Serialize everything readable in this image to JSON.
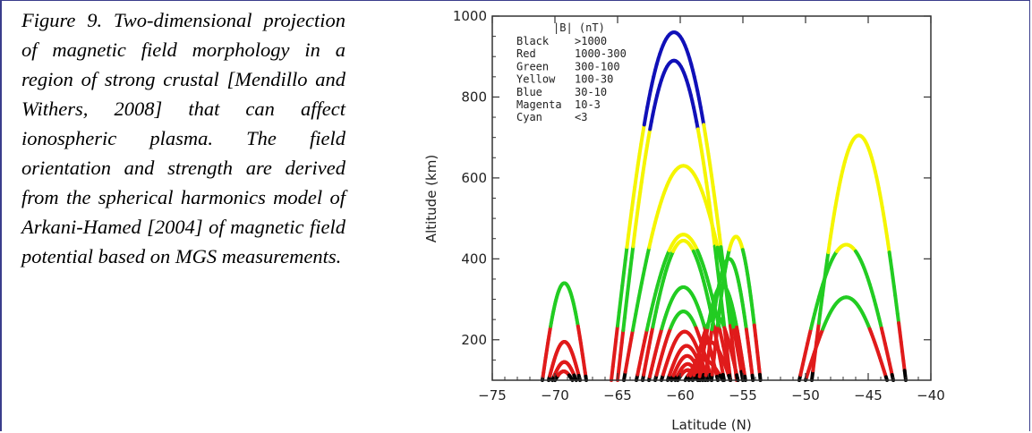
{
  "caption": "Figure 9. Two-dimensional projection of magnetic field morphology in a region of strong crustal [Mendillo and Withers, 2008] that can affect ionospheric plasma. The field orientation and strength are derived from the spherical harmonics model of Arkani-Hamed [2004] of magnetic field potential based on MGS measurements.",
  "chart_data": {
    "type": "line",
    "xlabel": "Latitude (N)",
    "ylabel": "Altitude (km)",
    "xlim": [
      -75,
      -40
    ],
    "ylim": [
      100,
      1000
    ],
    "xticks": [
      -75,
      -70,
      -65,
      -60,
      -55,
      -50,
      -45,
      -40
    ],
    "yticks": [
      200,
      400,
      600,
      800,
      1000
    ],
    "grid": false,
    "legend": {
      "position": "top-left",
      "title": "|B| (nT)",
      "entries": [
        {
          "name": "Black",
          "range": ">1000",
          "color": "#000000",
          "min": 1000,
          "max": 1000000
        },
        {
          "name": "Red",
          "range": "1000-300",
          "color": "#e01b1b",
          "min": 300,
          "max": 1000
        },
        {
          "name": "Green",
          "range": "300-100",
          "color": "#22cc22",
          "min": 100,
          "max": 300
        },
        {
          "name": "Yellow",
          "range": "100-30",
          "color": "#f5f500",
          "min": 30,
          "max": 100
        },
        {
          "name": "Blue",
          "range": "30-10",
          "color": "#1010b8",
          "min": 10,
          "max": 30
        },
        {
          "name": "Magenta",
          "range": "10-3",
          "color": "#e020e0",
          "min": 3,
          "max": 10
        },
        {
          "name": "Cyan",
          "range": "<3",
          "color": "#20e0e0",
          "min": 0,
          "max": 3
        }
      ]
    },
    "field_lines": [
      {
        "x1": -71,
        "x2": -67.5,
        "peak": 340
      },
      {
        "x1": -70.5,
        "x2": -68,
        "peak": 195
      },
      {
        "x1": -70.2,
        "x2": -68.3,
        "peak": 145
      },
      {
        "x1": -70,
        "x2": -68.6,
        "peak": 122
      },
      {
        "x1": -65.5,
        "x2": -55.5,
        "peak": 960
      },
      {
        "x1": -65,
        "x2": -56,
        "peak": 890
      },
      {
        "x1": -64.5,
        "x2": -55,
        "peak": 630
      },
      {
        "x1": -63.5,
        "x2": -56,
        "peak": 460
      },
      {
        "x1": -63,
        "x2": -56.5,
        "peak": 445
      },
      {
        "x1": -62.5,
        "x2": -57,
        "peak": 330
      },
      {
        "x1": -62,
        "x2": -57.5,
        "peak": 270
      },
      {
        "x1": -61.5,
        "x2": -57.8,
        "peak": 220
      },
      {
        "x1": -61,
        "x2": -58,
        "peak": 185
      },
      {
        "x1": -60.7,
        "x2": -58.2,
        "peak": 160
      },
      {
        "x1": -60.4,
        "x2": -58.4,
        "peak": 140
      },
      {
        "x1": -60.2,
        "x2": -58.6,
        "peak": 125
      },
      {
        "x1": -59.6,
        "x2": -56.6,
        "peak": 150
      },
      {
        "x1": -59.3,
        "x2": -56,
        "peak": 195
      },
      {
        "x1": -59,
        "x2": -55.4,
        "peak": 260
      },
      {
        "x1": -58.5,
        "x2": -54.8,
        "peak": 335
      },
      {
        "x1": -58,
        "x2": -54.2,
        "peak": 400
      },
      {
        "x1": -57.5,
        "x2": -53.6,
        "peak": 455
      },
      {
        "x1": -49.5,
        "x2": -42,
        "peak": 705
      },
      {
        "x1": -50.5,
        "x2": -43,
        "peak": 435
      },
      {
        "x1": -50,
        "x2": -43.5,
        "peak": 305
      }
    ]
  }
}
